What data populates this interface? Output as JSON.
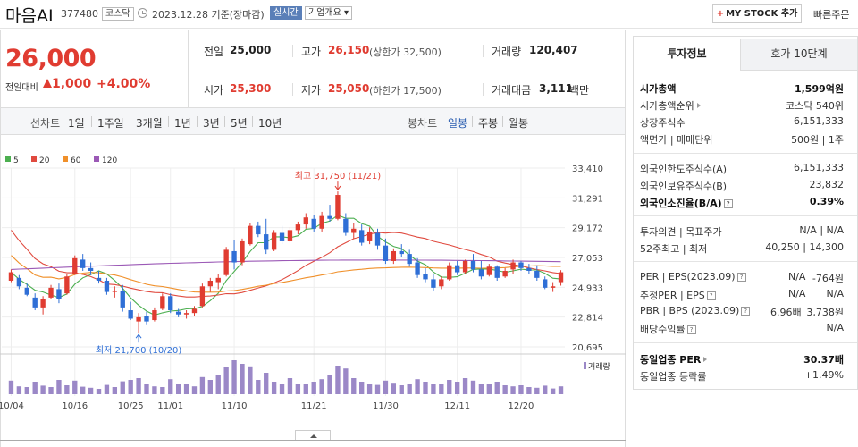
{
  "header": {
    "stock_name": "마음AI",
    "stock_code": "377480",
    "market": "코스닥",
    "date_text": "2023.12.28 기준(장마감)",
    "realtime_label": "실시간",
    "company_info_label": "기업개요 ▾",
    "my_stock_label": "MY STOCK 추가",
    "quick_order_label": "빠른주문"
  },
  "price": {
    "current": "26,000",
    "change_label": "전일대비",
    "change_value": "1,000",
    "change_rate": "+4.00%",
    "prev_close_label": "전일",
    "prev_close": "25,000",
    "high_label": "고가",
    "high": "26,150",
    "upper_limit": "(상한가 32,500)",
    "volume_label": "거래량",
    "volume": "120,407",
    "open_label": "시가",
    "open": "25,300",
    "low_label": "저가",
    "low": "25,050",
    "lower_limit": "(하한가 17,500)",
    "trade_value_label": "거래대금",
    "trade_value": "3,111",
    "trade_value_unit": "백만"
  },
  "toolbar": {
    "line_chart_label": "선차트",
    "periods": [
      "1일",
      "1주일",
      "3개월",
      "1년",
      "3년",
      "5년",
      "10년"
    ],
    "candle_chart_label": "봉차트",
    "candle_periods": [
      "일봉",
      "주봉",
      "월봉"
    ]
  },
  "colors": {
    "up": "#e03c31",
    "down": "#2f6fd6",
    "ma5": "#4caf50",
    "ma20": "#e04a3f",
    "ma60": "#f0902a",
    "ma120": "#9b59b6",
    "volume": "#9b88c7"
  },
  "chart_data": {
    "type": "candlestick",
    "legend": [
      "5",
      "20",
      "60",
      "120"
    ],
    "y_ticks": [
      "33,410",
      "31,291",
      "29,172",
      "27,053",
      "24,933",
      "22,814",
      "20,695"
    ],
    "ylim": [
      20695,
      33410
    ],
    "x_labels": [
      "10/04",
      "10/16",
      "10/25",
      "11/01",
      "11/10",
      "11/21",
      "11/30",
      "12/11",
      "12/20"
    ],
    "high_annotation": "최고 31,750 (11/21)",
    "low_annotation": "최저 21,700 (10/20)",
    "volume_label": "거래량",
    "candles": [
      [
        25400,
        26200,
        25300,
        26000
      ],
      [
        25600,
        25800,
        24800,
        25000
      ],
      [
        24900,
        25200,
        24300,
        24400
      ],
      [
        24200,
        24500,
        23300,
        23500
      ],
      [
        23500,
        24300,
        23000,
        24100
      ],
      [
        24200,
        25100,
        24100,
        24900
      ],
      [
        24800,
        25200,
        23800,
        24100
      ],
      [
        24500,
        25900,
        24400,
        25700
      ],
      [
        25900,
        27200,
        25800,
        27000
      ],
      [
        26900,
        27300,
        26100,
        26300
      ],
      [
        26300,
        26700,
        25800,
        26100
      ],
      [
        25600,
        26100,
        25200,
        25400
      ],
      [
        25400,
        25600,
        24400,
        24600
      ],
      [
        24600,
        25000,
        24200,
        24700
      ],
      [
        24700,
        25100,
        23200,
        23500
      ],
      [
        23300,
        23900,
        22600,
        22700
      ],
      [
        22500,
        23100,
        21700,
        22800
      ],
      [
        22900,
        23200,
        22300,
        22500
      ],
      [
        22600,
        23500,
        22500,
        23300
      ],
      [
        23400,
        24500,
        23300,
        24300
      ],
      [
        24300,
        24500,
        23100,
        23300
      ],
      [
        23200,
        23400,
        22800,
        23000
      ],
      [
        23000,
        23300,
        22700,
        23100
      ],
      [
        23100,
        23600,
        22900,
        23400
      ],
      [
        23600,
        25200,
        23500,
        25000
      ],
      [
        25000,
        25600,
        24600,
        25400
      ],
      [
        25300,
        25900,
        24800,
        25600
      ],
      [
        25800,
        27800,
        25700,
        27600
      ],
      [
        27500,
        28300,
        26200,
        26700
      ],
      [
        26700,
        28400,
        26500,
        28200
      ],
      [
        28000,
        29500,
        27900,
        29300
      ],
      [
        29300,
        29600,
        28500,
        28700
      ],
      [
        28700,
        29800,
        27300,
        27600
      ],
      [
        27600,
        29000,
        27500,
        28800
      ],
      [
        28800,
        29300,
        28000,
        28200
      ],
      [
        28200,
        29200,
        28100,
        29000
      ],
      [
        29000,
        29600,
        28700,
        29400
      ],
      [
        29400,
        30200,
        29100,
        29900
      ],
      [
        29800,
        30100,
        28900,
        29100
      ],
      [
        29100,
        30300,
        28900,
        30000
      ],
      [
        30000,
        30800,
        29600,
        29800
      ],
      [
        29800,
        31750,
        29700,
        31500
      ],
      [
        29800,
        30200,
        28600,
        28800
      ],
      [
        28800,
        29500,
        28400,
        29100
      ],
      [
        29000,
        29400,
        27900,
        28100
      ],
      [
        28200,
        29200,
        28000,
        28900
      ],
      [
        28800,
        29100,
        27600,
        27900
      ],
      [
        27900,
        28400,
        26600,
        26800
      ],
      [
        26800,
        27700,
        26600,
        27500
      ],
      [
        27500,
        28000,
        27100,
        27300
      ],
      [
        27300,
        27600,
        26400,
        26600
      ],
      [
        26700,
        27000,
        25600,
        25800
      ],
      [
        25900,
        26300,
        25300,
        25500
      ],
      [
        25500,
        25900,
        24700,
        24900
      ],
      [
        25000,
        25700,
        24800,
        25500
      ],
      [
        25500,
        26700,
        25400,
        26500
      ],
      [
        26500,
        26800,
        25800,
        26000
      ],
      [
        26000,
        26900,
        25900,
        26800
      ],
      [
        26800,
        27300,
        26000,
        26200
      ],
      [
        26200,
        26800,
        25500,
        25700
      ],
      [
        25800,
        26600,
        25700,
        26400
      ],
      [
        26400,
        26500,
        25400,
        25600
      ],
      [
        25700,
        26300,
        25600,
        26100
      ],
      [
        26200,
        26900,
        25900,
        26700
      ],
      [
        26700,
        26800,
        26100,
        26300
      ],
      [
        26300,
        26600,
        25900,
        26100
      ],
      [
        26100,
        26500,
        25400,
        25600
      ],
      [
        25500,
        25700,
        24800,
        24900
      ],
      [
        24900,
        25300,
        24600,
        25000
      ],
      [
        25300,
        26150,
        25050,
        26000
      ]
    ],
    "volumes": [
      38,
      22,
      20,
      35,
      24,
      20,
      40,
      25,
      38,
      21,
      18,
      15,
      26,
      20,
      36,
      40,
      45,
      28,
      22,
      20,
      42,
      28,
      30,
      22,
      48,
      40,
      55,
      75,
      95,
      85,
      78,
      40,
      60,
      35,
      30,
      45,
      30,
      28,
      35,
      42,
      55,
      80,
      72,
      45,
      35,
      30,
      26,
      38,
      32,
      25,
      28,
      42,
      35,
      30,
      28,
      40,
      35,
      45,
      38,
      30,
      28,
      35,
      25,
      22,
      25,
      20,
      18,
      24,
      16,
      22
    ]
  },
  "right_panel": {
    "tab_invest": "투자정보",
    "tab_quote": "호가 10단계",
    "market_cap_label": "시가총액",
    "market_cap": "1,599억원",
    "market_cap_rank_label": "시가총액순위",
    "market_cap_rank": "코스닥 540위",
    "shares_label": "상장주식수",
    "shares": "6,151,333",
    "par_label": "액면가 | 매매단위",
    "par": "500원 | 1주",
    "foreign_limit_label": "외국인한도주식수(A)",
    "foreign_limit": "6,151,333",
    "foreign_hold_label": "외국인보유주식수(B)",
    "foreign_hold": "23,832",
    "foreign_ratio_label": "외국인소진율(B/A)",
    "foreign_ratio": "0.39%",
    "opinion_label": "투자의견 | 목표주가",
    "opinion": "N/A | N/A",
    "w52_label": "52주최고 | 최저",
    "w52": "40,250 | 14,300",
    "per_label": "PER | EPS(2023.09)",
    "per": "N/A",
    "eps": "-764원",
    "est_per_label": "추정PER | EPS",
    "est_per": "N/A",
    "est_eps": "N/A",
    "pbr_label": "PBR | BPS (2023.09)",
    "pbr": "6.96배",
    "bps": "3,738원",
    "dividend_label": "배당수익률",
    "dividend": "N/A",
    "industry_per_label": "동일업종 PER",
    "industry_per": "30.37배",
    "industry_rate_label": "동일업종 등락률",
    "industry_rate": "+1.49%"
  }
}
